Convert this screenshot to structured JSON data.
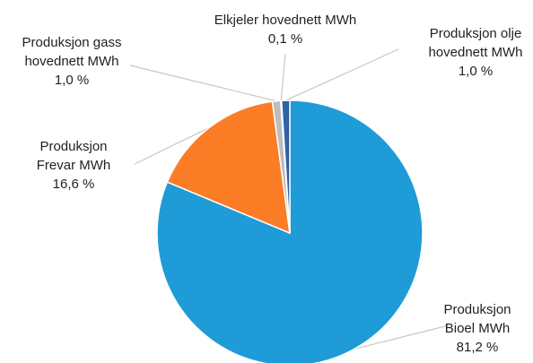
{
  "chart_data": {
    "type": "pie",
    "series": [
      {
        "values": [
          {
            "label_lines": [
              "Produksjon",
              "Bioel MWh"
            ],
            "value_label": "81,2 %",
            "value": 81.2,
            "color": "#1f9bd7"
          },
          {
            "label_lines": [
              "Produksjon",
              "Frevar MWh"
            ],
            "value_label": "16,6 %",
            "value": 16.6,
            "color": "#fb7d26"
          },
          {
            "label_lines": [
              "Produksjon gass",
              "hovednett MWh"
            ],
            "value_label": "1,0 %",
            "value": 1.0,
            "color": "#bdbdbd"
          },
          {
            "label_lines": [
              "Elkjeler hovednett MWh"
            ],
            "value_label": "0,1 %",
            "value": 0.1,
            "color": "#fcc419"
          },
          {
            "label_lines": [
              "Produksjon olje",
              "hovednett MWh"
            ],
            "value_label": "1,0 %",
            "value": 1.0,
            "color": "#2e63a8"
          }
        ]
      }
    ],
    "start_angle_deg": 90,
    "direction": "clockwise",
    "leader_line_color": "#c8c8c8",
    "text_color": "#1f1f1f",
    "slice_border_color": "#ffffff"
  }
}
